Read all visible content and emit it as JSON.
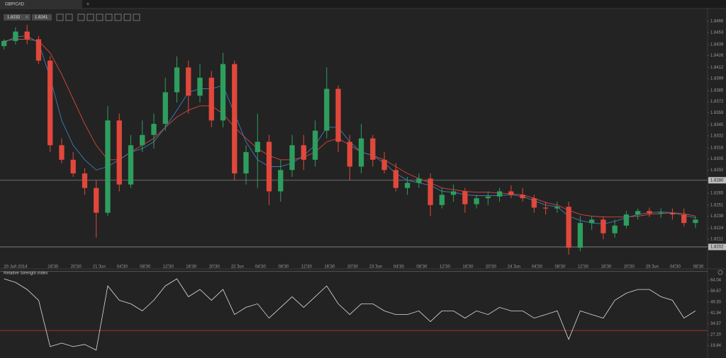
{
  "tab": {
    "title": "GBP/CAD",
    "add": "+"
  },
  "toolbar": {
    "readouts": [
      "1.8232",
      "1.8241"
    ]
  },
  "chart_data": [
    {
      "type": "candlestick",
      "x": [
        8,
        10,
        12,
        14,
        16,
        18,
        20,
        22,
        24,
        26,
        28,
        30,
        32,
        34,
        36,
        38,
        40,
        42,
        44,
        46,
        48,
        50,
        52,
        54,
        56,
        58,
        60,
        62,
        64,
        66,
        68,
        70,
        72,
        74,
        76,
        78,
        80,
        82,
        84,
        86,
        88,
        90,
        92,
        94,
        96,
        98,
        100,
        102,
        104,
        106,
        108,
        110,
        112,
        114,
        116,
        118,
        120,
        122,
        124,
        126,
        128
      ],
      "open": [
        1.8437,
        1.8443,
        1.8454,
        1.8445,
        1.842,
        1.8321,
        1.8304,
        1.8288,
        1.8271,
        1.8242,
        1.835,
        1.8275,
        1.8321,
        1.8333,
        1.8346,
        1.8383,
        1.8412,
        1.8379,
        1.84,
        1.835,
        1.8416,
        1.8288,
        1.8313,
        1.8325,
        1.8267,
        1.8292,
        1.8321,
        1.8304,
        1.8338,
        1.8387,
        1.8325,
        1.8296,
        1.8329,
        1.8304,
        1.8292,
        1.8271,
        1.8277,
        1.8282,
        1.8251,
        1.8263,
        1.8267,
        1.8252,
        1.8259,
        1.8261,
        1.8267,
        1.8263,
        1.8259,
        1.8248,
        1.8247,
        1.8249,
        1.8201,
        1.823,
        1.8234,
        1.8218,
        1.8227,
        1.824,
        1.8244,
        1.8241,
        1.8242,
        1.824,
        1.823
      ],
      "high": [
        1.8445,
        1.8459,
        1.8462,
        1.8449,
        1.8425,
        1.8329,
        1.8313,
        1.8294,
        1.828,
        1.8367,
        1.8358,
        1.8333,
        1.835,
        1.8358,
        1.84,
        1.8425,
        1.842,
        1.8416,
        1.8408,
        1.8429,
        1.842,
        1.8321,
        1.8358,
        1.8333,
        1.8304,
        1.8333,
        1.8333,
        1.835,
        1.8412,
        1.8391,
        1.8333,
        1.8346,
        1.8333,
        1.8313,
        1.83,
        1.8284,
        1.8288,
        1.8288,
        1.8271,
        1.8275,
        1.8271,
        1.8263,
        1.8267,
        1.8271,
        1.8274,
        1.8271,
        1.8263,
        1.8255,
        1.8255,
        1.8255,
        1.8238,
        1.8238,
        1.8238,
        1.8234,
        1.8244,
        1.8247,
        1.8248,
        1.8247,
        1.8247,
        1.8247,
        1.8238
      ],
      "low": [
        1.8433,
        1.8439,
        1.8439,
        1.8416,
        1.8313,
        1.83,
        1.8284,
        1.8263,
        1.8213,
        1.8238,
        1.8267,
        1.8271,
        1.8313,
        1.8317,
        1.8338,
        1.8371,
        1.8358,
        1.8371,
        1.8342,
        1.8342,
        1.828,
        1.8275,
        1.8271,
        1.8251,
        1.8255,
        1.8284,
        1.8292,
        1.8296,
        1.8329,
        1.8313,
        1.828,
        1.8288,
        1.8296,
        1.8288,
        1.8267,
        1.8263,
        1.8271,
        1.8238,
        1.8247,
        1.8255,
        1.8242,
        1.8247,
        1.8251,
        1.8255,
        1.8259,
        1.8255,
        1.8242,
        1.824,
        1.8242,
        1.8193,
        1.8197,
        1.8222,
        1.8211,
        1.8213,
        1.8224,
        1.8234,
        1.8237,
        1.8236,
        1.8234,
        1.8226,
        1.8224
      ],
      "close": [
        1.8443,
        1.8454,
        1.8445,
        1.842,
        1.8321,
        1.8304,
        1.8288,
        1.8271,
        1.8242,
        1.835,
        1.8275,
        1.8321,
        1.8333,
        1.8346,
        1.8383,
        1.8412,
        1.8379,
        1.84,
        1.835,
        1.8416,
        1.8288,
        1.8313,
        1.8325,
        1.8267,
        1.8292,
        1.8321,
        1.8304,
        1.8338,
        1.8387,
        1.8325,
        1.8296,
        1.8329,
        1.8304,
        1.8292,
        1.8271,
        1.8277,
        1.8282,
        1.8251,
        1.8263,
        1.8267,
        1.8252,
        1.8259,
        1.8261,
        1.8267,
        1.8263,
        1.8259,
        1.8248,
        1.8247,
        1.8249,
        1.8201,
        1.823,
        1.8234,
        1.8218,
        1.8227,
        1.824,
        1.8244,
        1.8241,
        1.8242,
        1.824,
        1.823,
        1.8234
      ],
      "up_color": "#2e9e5e",
      "down_color": "#e0483b",
      "series": [
        {
          "color": "#d9463a",
          "values": [
            1.8443,
            1.8445,
            1.8445,
            1.8443,
            1.8429,
            1.8404,
            1.8375,
            1.8346,
            1.8321,
            1.8304,
            1.8304,
            1.8313,
            1.8321,
            1.8329,
            1.8342,
            1.8354,
            1.8362,
            1.8367,
            1.8367,
            1.8358,
            1.8342,
            1.8329,
            1.8317,
            1.8309,
            1.8304,
            1.8304,
            1.8307,
            1.8313,
            1.8325,
            1.8329,
            1.8321,
            1.8313,
            1.8309,
            1.8304,
            1.8296,
            1.8288,
            1.8282,
            1.8277,
            1.8271,
            1.8269,
            1.8267,
            1.8266,
            1.8266,
            1.8265,
            1.8264,
            1.8263,
            1.8259,
            1.8254,
            1.8251,
            1.8245,
            1.824,
            1.8238,
            1.8237,
            1.8237,
            1.8237,
            1.8238,
            1.824,
            1.8241,
            1.8242,
            1.8241,
            1.8238
          ]
        },
        {
          "color": "#3b7fb8",
          "values": [
            1.8441,
            1.8448,
            1.8449,
            1.8441,
            1.84,
            1.835,
            1.8321,
            1.8304,
            1.8292,
            1.8296,
            1.8304,
            1.8313,
            1.8317,
            1.8325,
            1.8342,
            1.8362,
            1.8383,
            1.8387,
            1.8387,
            1.8391,
            1.8358,
            1.8325,
            1.8304,
            1.8296,
            1.8296,
            1.83,
            1.8309,
            1.8321,
            1.8342,
            1.8342,
            1.8325,
            1.8313,
            1.8309,
            1.83,
            1.8288,
            1.828,
            1.8277,
            1.8274,
            1.8267,
            1.8266,
            1.8263,
            1.8262,
            1.8262,
            1.8262,
            1.8263,
            1.8261,
            1.8256,
            1.8251,
            1.8249,
            1.8238,
            1.8233,
            1.823,
            1.8229,
            1.8232,
            1.8236,
            1.824,
            1.8242,
            1.8243,
            1.8242,
            1.8239,
            1.8236
          ]
        }
      ],
      "price_lines": [
        {
          "value": 1.828,
          "label": "1.8280"
        },
        {
          "value": 1.8202,
          "label": "1.8202"
        }
      ],
      "xlim": [
        7.3,
        130.1
      ],
      "ylim": [
        1.8178,
        1.8481
      ],
      "xticks": [
        {
          "value": 10,
          "label": "20 Jun 2014"
        },
        {
          "value": 16.5,
          "label": "16:30"
        },
        {
          "value": 20.5,
          "label": "20:30"
        },
        {
          "value": 24.5,
          "label": "21 Jun"
        },
        {
          "value": 28.5,
          "label": "04:30"
        },
        {
          "value": 32.5,
          "label": "08:30"
        },
        {
          "value": 36.5,
          "label": "12:30"
        },
        {
          "value": 40.5,
          "label": "16:30"
        },
        {
          "value": 44.5,
          "label": "20:30"
        },
        {
          "value": 48.5,
          "label": "22 Jun"
        },
        {
          "value": 52.5,
          "label": "04:30"
        },
        {
          "value": 56.5,
          "label": "08:30"
        },
        {
          "value": 60.5,
          "label": "12:30"
        },
        {
          "value": 64.5,
          "label": "16:30"
        },
        {
          "value": 68.5,
          "label": "20:30"
        },
        {
          "value": 72.5,
          "label": "23 Jun"
        },
        {
          "value": 76.5,
          "label": "04:30"
        },
        {
          "value": 80.5,
          "label": "08:30"
        },
        {
          "value": 84.5,
          "label": "12:30"
        },
        {
          "value": 88.5,
          "label": "16:30"
        },
        {
          "value": 92.5,
          "label": "20:30"
        },
        {
          "value": 96.5,
          "label": "24 Jun"
        },
        {
          "value": 100.5,
          "label": "04:30"
        },
        {
          "value": 104.5,
          "label": "08:30"
        },
        {
          "value": 108.5,
          "label": "12:30"
        },
        {
          "value": 112.5,
          "label": "16:30"
        },
        {
          "value": 116.5,
          "label": "20:30"
        },
        {
          "value": 120.5,
          "label": "25 Jun"
        },
        {
          "value": 124.5,
          "label": "04:30"
        },
        {
          "value": 128.5,
          "label": "08:30"
        }
      ],
      "yticks": [
        1.8466,
        1.8453,
        1.8439,
        1.8426,
        1.8412,
        1.8399,
        1.8385,
        1.8372,
        1.8359,
        1.8345,
        1.8332,
        1.8318,
        1.8305,
        1.8292,
        {
          "value": 1.8265,
          "label": "1.8265"
        },
        1.8251,
        1.8238,
        1.8224,
        1.8211
      ]
    },
    {
      "type": "line",
      "title": "Relative Strength Index",
      "x": [
        8,
        10,
        12,
        14,
        16,
        18,
        20,
        22,
        24,
        26,
        28,
        30,
        32,
        34,
        36,
        38,
        40,
        42,
        44,
        46,
        48,
        50,
        52,
        54,
        56,
        58,
        60,
        62,
        64,
        66,
        68,
        70,
        72,
        74,
        76,
        78,
        80,
        82,
        84,
        86,
        88,
        90,
        92,
        94,
        96,
        98,
        100,
        102,
        104,
        106,
        108,
        110,
        112,
        114,
        116,
        118,
        120,
        122,
        124,
        126,
        128
      ],
      "series": [
        {
          "color": "#dddddd",
          "values": [
            65.0,
            62.6,
            57.8,
            50.5,
            19.1,
            21.5,
            19.1,
            20.6,
            16.7,
            60.2,
            50.5,
            48.1,
            43.3,
            50.5,
            60.2,
            65.0,
            52.9,
            57.8,
            50.5,
            57.8,
            40.8,
            45.7,
            48.1,
            38.4,
            45.7,
            52.9,
            45.7,
            52.9,
            60.2,
            48.1,
            40.8,
            48.1,
            48.1,
            43.3,
            40.8,
            40.8,
            43.3,
            36.0,
            43.3,
            43.3,
            38.4,
            43.3,
            40.8,
            45.7,
            43.3,
            43.3,
            38.4,
            40.8,
            43.3,
            24.0,
            43.3,
            40.8,
            38.4,
            50.5,
            55.3,
            57.8,
            57.8,
            52.9,
            50.5,
            38.4,
            43.3
          ]
        }
      ],
      "levels": [
        {
          "value": 70,
          "color": "#5a5a5a"
        },
        {
          "value": 30,
          "color": "#b0392c"
        }
      ],
      "xlim": [
        7.3,
        130.1
      ],
      "ylim": [
        11.4,
        70.8
      ],
      "yticks": [
        64.04,
        56.67,
        {
          "value": 49.3,
          "label": "49.30"
        },
        41.94,
        34.57,
        {
          "value": 27.2,
          "label": "27.20"
        },
        19.84
      ]
    }
  ]
}
